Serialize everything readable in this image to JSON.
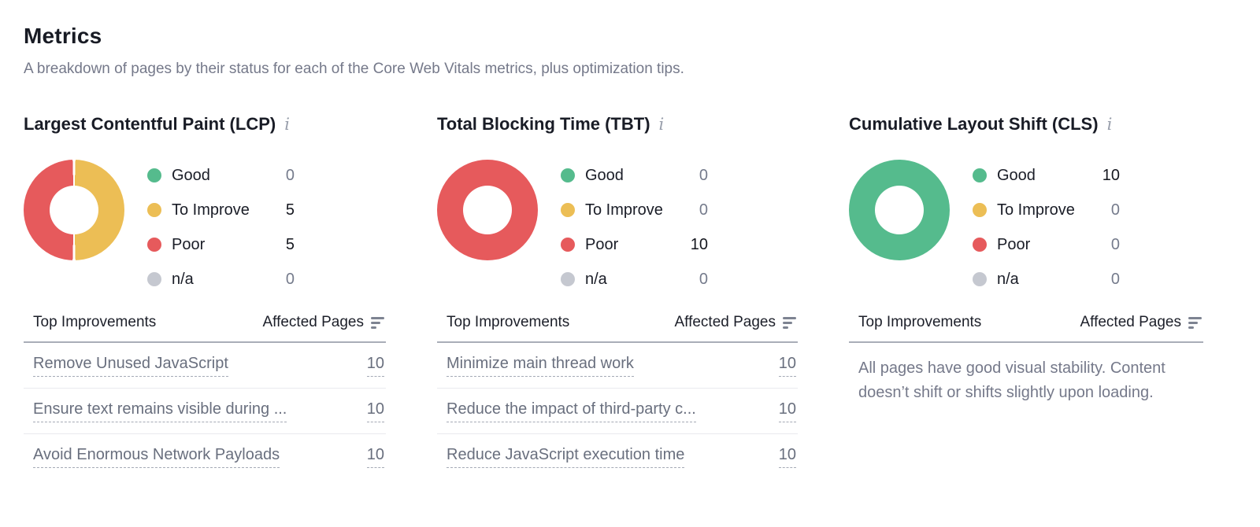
{
  "page": {
    "title": "Metrics",
    "subtitle": "A breakdown of pages by their status for each of the Core Web Vitals metrics, plus optimization tips."
  },
  "colors": {
    "good": "#55BB8D",
    "to_improve": "#ECBE55",
    "poor": "#E65A5C",
    "na": "#C5C8D0"
  },
  "icons": {
    "info": "i"
  },
  "table": {
    "improvements_header": "Top Improvements",
    "affected_header": "Affected Pages"
  },
  "sections": [
    {
      "title": "Largest Contentful Paint (LCP)",
      "chart_data": {
        "type": "pie",
        "title": "Largest Contentful Paint (LCP)",
        "categories": [
          "Good",
          "To Improve",
          "Poor",
          "n/a"
        ],
        "values": [
          0,
          5,
          5,
          0
        ],
        "legend_position": "right"
      },
      "legend": [
        {
          "status": "good",
          "label": "Good",
          "value": "0"
        },
        {
          "status": "to_improve",
          "label": "To Improve",
          "value": "5"
        },
        {
          "status": "poor",
          "label": "Poor",
          "value": "5"
        },
        {
          "status": "na",
          "label": "n/a",
          "value": "0"
        }
      ],
      "improvements": [
        {
          "label": "Remove Unused JavaScript",
          "pages": "10"
        },
        {
          "label": "Ensure text remains visible during ...",
          "pages": "10"
        },
        {
          "label": "Avoid Enormous Network Payloads",
          "pages": "10"
        }
      ]
    },
    {
      "title": "Total Blocking Time (TBT)",
      "chart_data": {
        "type": "pie",
        "title": "Total Blocking Time (TBT)",
        "categories": [
          "Good",
          "To Improve",
          "Poor",
          "n/a"
        ],
        "values": [
          0,
          0,
          10,
          0
        ],
        "legend_position": "right"
      },
      "legend": [
        {
          "status": "good",
          "label": "Good",
          "value": "0"
        },
        {
          "status": "to_improve",
          "label": "To Improve",
          "value": "0"
        },
        {
          "status": "poor",
          "label": "Poor",
          "value": "10"
        },
        {
          "status": "na",
          "label": "n/a",
          "value": "0"
        }
      ],
      "improvements": [
        {
          "label": "Minimize main thread work",
          "pages": "10"
        },
        {
          "label": "Reduce the impact of third-party c...",
          "pages": "10"
        },
        {
          "label": "Reduce JavaScript execution time",
          "pages": "10"
        }
      ]
    },
    {
      "title": "Cumulative Layout Shift (CLS)",
      "chart_data": {
        "type": "pie",
        "title": "Cumulative Layout Shift (CLS)",
        "categories": [
          "Good",
          "To Improve",
          "Poor",
          "n/a"
        ],
        "values": [
          10,
          0,
          0,
          0
        ],
        "legend_position": "right"
      },
      "legend": [
        {
          "status": "good",
          "label": "Good",
          "value": "10"
        },
        {
          "status": "to_improve",
          "label": "To Improve",
          "value": "0"
        },
        {
          "status": "poor",
          "label": "Poor",
          "value": "0"
        },
        {
          "status": "na",
          "label": "n/a",
          "value": "0"
        }
      ],
      "improvements": [],
      "empty_message": "All pages have good visual stability. Content doesn’t shift or shifts slightly upon loading."
    }
  ]
}
